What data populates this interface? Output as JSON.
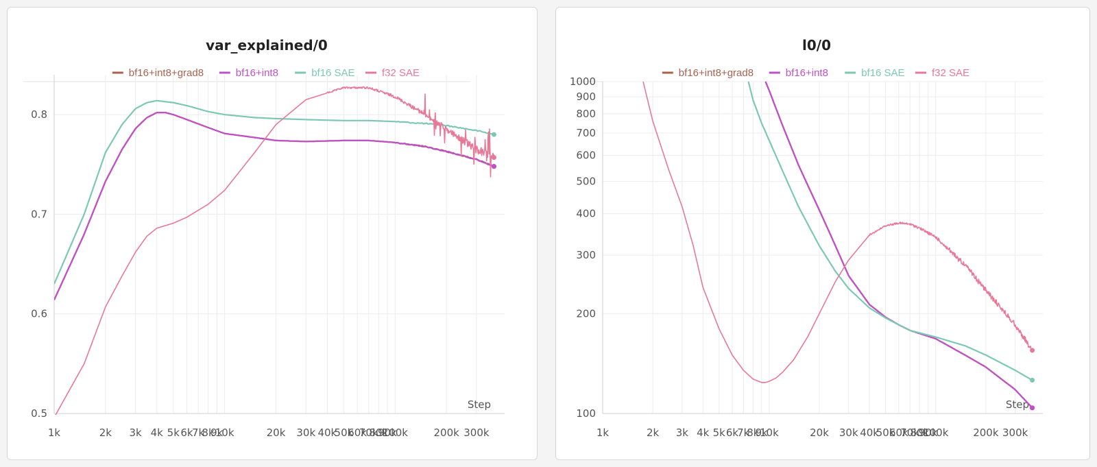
{
  "chart_data": [
    {
      "type": "line",
      "title": "var_explained/0",
      "xlabel": "Step",
      "ylabel": "",
      "xscale": "log",
      "yscale": "linear",
      "xlim": [
        1000,
        400000
      ],
      "ylim": [
        0.5,
        0.84
      ],
      "xticks": [
        1000,
        2000,
        3000,
        4000,
        5000,
        6000,
        7000,
        8000,
        9000,
        10000,
        20000,
        30000,
        40000,
        50000,
        60000,
        70000,
        80000,
        90000,
        100000,
        200000,
        300000
      ],
      "xtick_labels": [
        "1k",
        "2k",
        "3k",
        "4k",
        "5k",
        "6k",
        "7k",
        "8k",
        "9k",
        "10k",
        "20k",
        "30k",
        "40k",
        "50k",
        "60k",
        "70k",
        "80k",
        "90k",
        "100k",
        "200k",
        "300k"
      ],
      "yticks": [
        0.5,
        0.6,
        0.7,
        0.8
      ],
      "ytick_labels": [
        "0.5",
        "0.6",
        "0.7",
        "0.8"
      ],
      "grid": true,
      "legend_position": "top-center",
      "series": [
        {
          "name": "bf16+int8+grad8",
          "color": "#a8634f",
          "noise": 0,
          "x": [
            1000,
            1500,
            2000,
            2500,
            3000,
            3500,
            4000,
            4500,
            5000,
            6000,
            8000,
            10000,
            15000,
            20000,
            30000,
            50000,
            70000,
            100000,
            150000,
            200000,
            300000,
            380000
          ],
          "y": [
            0.614,
            0.68,
            0.733,
            0.765,
            0.786,
            0.797,
            0.802,
            0.802,
            0.8,
            0.795,
            0.787,
            0.781,
            0.777,
            0.774,
            0.773,
            0.774,
            0.774,
            0.772,
            0.768,
            0.763,
            0.755,
            0.748
          ]
        },
        {
          "name": "bf16+int8",
          "color": "#c050c8",
          "noise": 0,
          "x": [
            1000,
            1500,
            2000,
            2500,
            3000,
            3500,
            4000,
            4500,
            5000,
            6000,
            8000,
            10000,
            15000,
            20000,
            30000,
            50000,
            70000,
            100000,
            150000,
            200000,
            300000,
            380000
          ],
          "y": [
            0.614,
            0.68,
            0.733,
            0.765,
            0.786,
            0.797,
            0.802,
            0.802,
            0.8,
            0.795,
            0.787,
            0.781,
            0.777,
            0.774,
            0.773,
            0.774,
            0.774,
            0.772,
            0.768,
            0.763,
            0.755,
            0.748
          ]
        },
        {
          "name": "bf16 SAE",
          "color": "#7cc8b4",
          "noise": 0,
          "x": [
            1000,
            1500,
            2000,
            2500,
            3000,
            3500,
            4000,
            5000,
            6000,
            8000,
            10000,
            15000,
            20000,
            30000,
            50000,
            70000,
            100000,
            150000,
            200000,
            300000,
            380000
          ],
          "y": [
            0.63,
            0.7,
            0.762,
            0.79,
            0.806,
            0.812,
            0.814,
            0.812,
            0.809,
            0.803,
            0.8,
            0.797,
            0.796,
            0.795,
            0.794,
            0.794,
            0.793,
            0.791,
            0.789,
            0.784,
            0.78
          ]
        },
        {
          "name": "f32 SAE",
          "color": "#e87898",
          "noise": 1,
          "x": [
            1000,
            1500,
            2000,
            2500,
            3000,
            3500,
            4000,
            5000,
            6000,
            8000,
            10000,
            15000,
            20000,
            30000,
            50000,
            70000,
            100000,
            150000,
            200000,
            300000,
            380000
          ],
          "y": [
            0.496,
            0.55,
            0.607,
            0.638,
            0.662,
            0.678,
            0.686,
            0.691,
            0.697,
            0.71,
            0.724,
            0.762,
            0.79,
            0.815,
            0.827,
            0.827,
            0.818,
            0.8,
            0.785,
            0.765,
            0.757
          ]
        }
      ]
    },
    {
      "type": "line",
      "title": "l0/0",
      "xlabel": "Step",
      "ylabel": "",
      "xscale": "log",
      "yscale": "log",
      "xlim": [
        1000,
        400000
      ],
      "ylim": [
        100,
        1000
      ],
      "xticks": [
        1000,
        2000,
        3000,
        4000,
        5000,
        6000,
        7000,
        8000,
        9000,
        10000,
        20000,
        30000,
        40000,
        50000,
        60000,
        70000,
        80000,
        90000,
        100000,
        200000,
        300000
      ],
      "xtick_labels": [
        "1k",
        "2k",
        "3k",
        "4k",
        "5k",
        "6k",
        "7k",
        "8k",
        "9k",
        "10k",
        "20k",
        "30k",
        "40k",
        "50k",
        "60k",
        "70k",
        "80k",
        "90k",
        "100k",
        "200k",
        "300k"
      ],
      "yticks": [
        100,
        200,
        300,
        400,
        500,
        600,
        700,
        800,
        900,
        1000
      ],
      "ytick_labels": [
        "100",
        "200",
        "300",
        "400",
        "500",
        "600",
        "700",
        "800",
        "900",
        "1000"
      ],
      "grid": true,
      "legend_position": "top-center",
      "series": [
        {
          "name": "bf16+int8+grad8",
          "color": "#a8634f",
          "noise": 0,
          "x": [
            9500,
            10000,
            12000,
            15000,
            20000,
            25000,
            30000,
            40000,
            50000,
            60000,
            70000,
            100000,
            150000,
            200000,
            300000,
            380000
          ],
          "y": [
            1000,
            940,
            740,
            560,
            410,
            320,
            260,
            213,
            195,
            185,
            178,
            168,
            150,
            138,
            118,
            104
          ]
        },
        {
          "name": "bf16+int8",
          "color": "#c050c8",
          "noise": 0,
          "x": [
            9500,
            10000,
            12000,
            15000,
            20000,
            25000,
            30000,
            40000,
            50000,
            60000,
            70000,
            100000,
            150000,
            200000,
            300000,
            380000
          ],
          "y": [
            1000,
            940,
            740,
            560,
            410,
            320,
            260,
            213,
            195,
            185,
            178,
            168,
            150,
            138,
            118,
            104
          ]
        },
        {
          "name": "bf16 SAE",
          "color": "#7cc8b4",
          "noise": 0,
          "x": [
            7500,
            8000,
            9000,
            10000,
            12000,
            15000,
            20000,
            25000,
            30000,
            40000,
            50000,
            60000,
            70000,
            100000,
            150000,
            200000,
            300000,
            380000
          ],
          "y": [
            1000,
            880,
            750,
            665,
            540,
            420,
            320,
            268,
            238,
            208,
            194,
            185,
            178,
            170,
            160,
            150,
            135,
            126
          ]
        },
        {
          "name": "f32 SAE",
          "color": "#e87898",
          "noise": 1,
          "x": [
            1750,
            2000,
            2500,
            3000,
            3500,
            4000,
            5000,
            6000,
            7000,
            8000,
            9000,
            9500,
            10000,
            11000,
            12000,
            14000,
            17000,
            20000,
            25000,
            30000,
            40000,
            50000,
            60000,
            70000,
            80000,
            100000,
            150000,
            200000,
            300000,
            380000
          ],
          "y": [
            1000,
            760,
            540,
            420,
            320,
            240,
            180,
            150,
            135,
            127,
            124,
            124,
            125,
            128,
            133,
            145,
            170,
            200,
            250,
            290,
            345,
            368,
            375,
            372,
            362,
            340,
            280,
            235,
            185,
            155
          ]
        }
      ]
    }
  ]
}
